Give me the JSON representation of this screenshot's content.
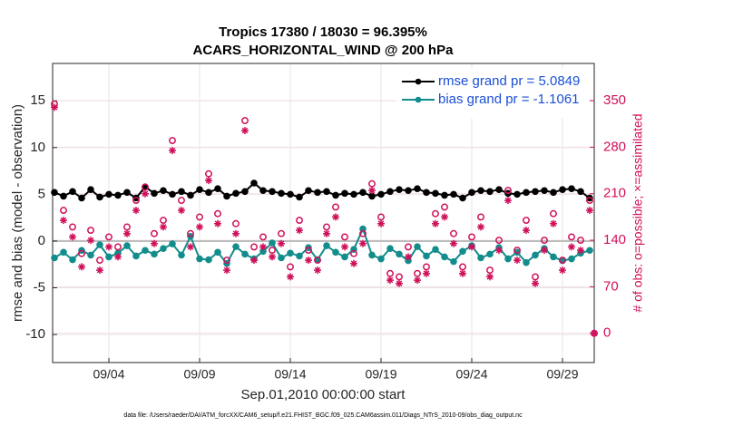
{
  "chart_data": {
    "type": "line",
    "title": "Tropics 17380 / 18030 = 96.395%",
    "subtitle": "ACARS_HORIZONTAL_WIND @ 200 hPa",
    "x_label": "Sep.01,2010 00:00:00 start",
    "y_label": "rmse and bias (model - observation)",
    "y2_label": "# of obs: o=possible; ×=assimilated",
    "footnote": "data file: /Users/raeder/DAI/ATM_forcXX/CAM6_setup/f.e21.FHIST_BGC.f09_025.CAM6assim.011/Diags_NTrS_2010-09/obs_diag_output.nc",
    "x": [
      0,
      0.5,
      1,
      1.5,
      2,
      2.5,
      3,
      3.5,
      4,
      4.5,
      5,
      5.5,
      6,
      6.5,
      7,
      7.5,
      8,
      8.5,
      9,
      9.5,
      10,
      10.5,
      11,
      11.5,
      12,
      12.5,
      13,
      13.5,
      14,
      14.5,
      15,
      15.5,
      16,
      16.5,
      17,
      17.5,
      18,
      18.5,
      19,
      19.5,
      20,
      20.5,
      21,
      21.5,
      22,
      22.5,
      23,
      23.5,
      24,
      24.5,
      25,
      25.5,
      26,
      26.5,
      27,
      27.5,
      28,
      28.5,
      29,
      29.5,
      29.75
    ],
    "xlim": [
      -0.1,
      29.75
    ],
    "xticks": [
      {
        "value": 3,
        "label": "09/04"
      },
      {
        "value": 8,
        "label": "09/09"
      },
      {
        "value": 13,
        "label": "09/14"
      },
      {
        "value": 18,
        "label": "09/19"
      },
      {
        "value": 23,
        "label": "09/24"
      },
      {
        "value": 28,
        "label": "09/29"
      }
    ],
    "ylim": [
      -13,
      19
    ],
    "yticks": [
      -10,
      -5,
      0,
      5,
      10,
      15
    ],
    "y2lim": [
      -44,
      406
    ],
    "y2ticks": [
      0,
      70,
      140,
      210,
      280,
      350
    ],
    "grid": true,
    "zero_line": true,
    "legend": "upper right",
    "series": [
      {
        "name": "rmse grand pr = 5.0849",
        "color": "#000000",
        "marker": "o-",
        "values": [
          5.2,
          4.8,
          5.3,
          4.6,
          5.5,
          4.7,
          5.0,
          4.9,
          5.2,
          4.6,
          5.8,
          5.1,
          5.4,
          5.0,
          5.3,
          4.9,
          5.5,
          5.2,
          5.6,
          4.8,
          5.1,
          5.3,
          6.2,
          5.4,
          5.3,
          5.1,
          5.0,
          4.7,
          5.4,
          5.2,
          5.3,
          4.9,
          5.1,
          5.0,
          5.2,
          4.8,
          5.0,
          5.3,
          5.5,
          5.4,
          5.6,
          5.2,
          5.1,
          4.9,
          5.0,
          4.6,
          5.2,
          5.4,
          5.3,
          5.5,
          5.1,
          5.0,
          5.2,
          5.3,
          5.4,
          5.2,
          5.5,
          5.6,
          5.3,
          4.6,
          null
        ]
      },
      {
        "name": "bias grand pr = -1.1061",
        "color": "#138c8c",
        "marker": "o-",
        "values": [
          -1.8,
          -1.2,
          -2.0,
          -1.0,
          -1.5,
          -0.4,
          -1.7,
          -1.3,
          -0.5,
          -1.6,
          -1.0,
          -1.4,
          -0.8,
          -0.3,
          -1.5,
          0.5,
          -1.9,
          -2.0,
          -1.2,
          -2.4,
          -0.6,
          -1.4,
          -1.9,
          -1.1,
          -0.2,
          -1.8,
          -1.3,
          -1.6,
          -0.7,
          -2.0,
          -0.5,
          -1.2,
          -1.7,
          -0.9,
          1.3,
          -1.5,
          -1.9,
          -0.8,
          -1.4,
          -2.1,
          -0.6,
          -1.6,
          -0.9,
          -1.7,
          -2.2,
          -1.1,
          -0.5,
          -1.8,
          -1.4,
          -0.7,
          -1.9,
          -1.2,
          -2.3,
          -1.5,
          -0.8,
          -1.7,
          -2.1,
          -1.9,
          -1.3,
          -1.0,
          null
        ]
      },
      {
        "color": "#d0105a",
        "marker": "o",
        "axis": "y2",
        "values": [
          345,
          185,
          160,
          120,
          155,
          110,
          145,
          130,
          160,
          200,
          220,
          150,
          170,
          290,
          200,
          150,
          175,
          240,
          180,
          110,
          165,
          320,
          130,
          145,
          125,
          150,
          100,
          170,
          125,
          110,
          160,
          190,
          145,
          120,
          150,
          225,
          175,
          90,
          85,
          130,
          90,
          100,
          180,
          190,
          150,
          100,
          145,
          175,
          95,
          140,
          215,
          125,
          170,
          85,
          140,
          180,
          110,
          145,
          140,
          200,
          0
        ]
      },
      {
        "color": "#d0105a",
        "marker": "*",
        "axis": "y2",
        "values": [
          340,
          170,
          145,
          100,
          140,
          95,
          130,
          115,
          150,
          185,
          210,
          135,
          160,
          275,
          185,
          130,
          160,
          230,
          165,
          95,
          150,
          305,
          110,
          130,
          115,
          135,
          85,
          155,
          110,
          95,
          150,
          175,
          130,
          105,
          135,
          215,
          165,
          80,
          75,
          115,
          80,
          90,
          165,
          175,
          135,
          90,
          130,
          160,
          85,
          125,
          200,
          110,
          155,
          75,
          125,
          165,
          95,
          130,
          125,
          185,
          0
        ]
      }
    ]
  }
}
